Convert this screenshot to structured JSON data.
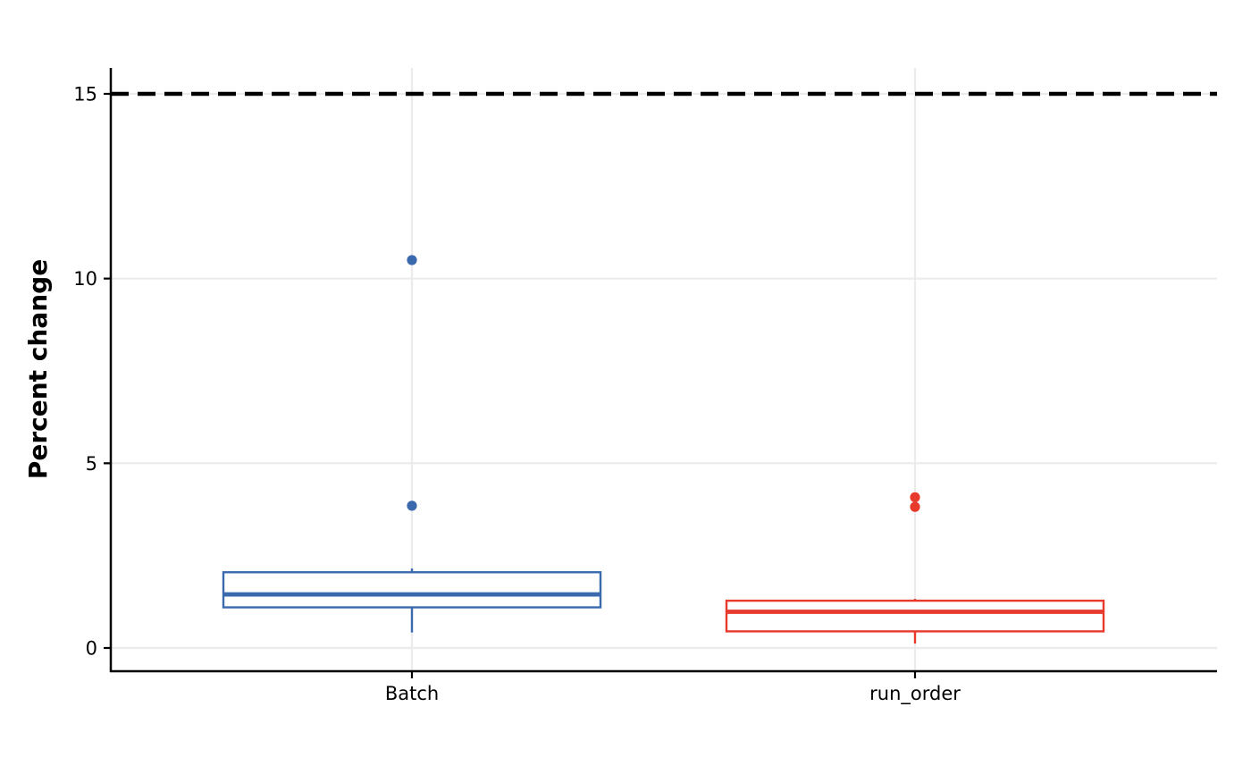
{
  "chart_data": {
    "type": "boxplot",
    "title": "",
    "xlabel": "",
    "ylabel": "Percent change",
    "ylim": [
      -0.6,
      15.7
    ],
    "y_ticks": [
      0,
      5,
      10,
      15
    ],
    "grid": true,
    "legend": "none",
    "reference_line": {
      "y": 15,
      "style": "dashed",
      "color": "#000000"
    },
    "categories": [
      "Batch",
      "run_order"
    ],
    "series": [
      {
        "category": "Batch",
        "color": "#3a6aad",
        "whisker_low": 0.42,
        "q1": 1.1,
        "median": 1.45,
        "q3": 2.05,
        "whisker_high": 2.15,
        "outliers": [
          3.85,
          10.5
        ]
      },
      {
        "category": "run_order",
        "color": "#e8392d",
        "whisker_low": 0.12,
        "q1": 0.45,
        "median": 0.98,
        "q3": 1.28,
        "whisker_high": 1.33,
        "outliers": [
          3.82,
          4.08
        ]
      }
    ]
  }
}
